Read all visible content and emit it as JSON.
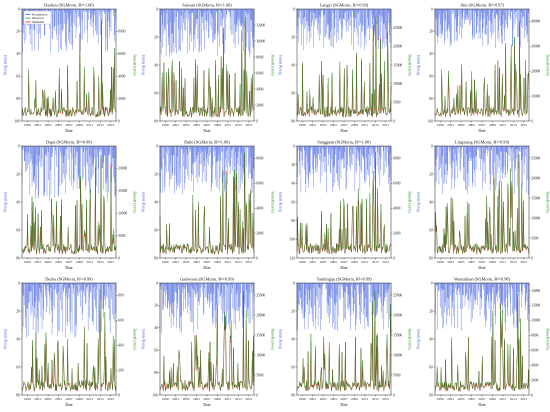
{
  "colors": {
    "precip": "#3355dd",
    "observed": "#2e7d1f",
    "simulated": "#e02020",
    "frame": "#222222",
    "precip_axis": "#3355dd",
    "runoff_axis": "#1a8a1a"
  },
  "legend": [
    "Precipitation",
    "Observed",
    "Simulated"
  ],
  "chart_data": [
    {
      "type": "line",
      "title": "Dazhou (SGMorm, R²=1.00)",
      "xlabel": "Date",
      "ylabel": "Precip (mm)",
      "y2label": "Runoff (m³/s)",
      "xticks": [
        "1999",
        "2001",
        "2003",
        "2005",
        "2007",
        "2009",
        "2011",
        "2013",
        "2015"
      ],
      "yticks": [
        0,
        20,
        40,
        60,
        80,
        100
      ],
      "y2ticks": [
        0,
        2000,
        4000,
        6000,
        8000
      ],
      "ylim": [
        0,
        100
      ],
      "y2lim": [
        0,
        10000
      ],
      "legend": "top-left",
      "series": [
        {
          "name": "Precipitation",
          "peak": 40
        },
        {
          "name": "Observed",
          "peak": 9000
        },
        {
          "name": "Simulated",
          "peak": 8800
        }
      ]
    },
    {
      "type": "line",
      "title": "Suiwan (SGMorm, R²=1.00)",
      "xlabel": "Date",
      "ylabel": "Precip (mm)",
      "y2label": "Runoff (m³/s)",
      "xticks": [
        "1999",
        "2001",
        "2003",
        "2005",
        "2007",
        "2009",
        "2011",
        "2013",
        "2015"
      ],
      "yticks": [
        0,
        20,
        40,
        60,
        80
      ],
      "y2ticks": [
        0,
        2000,
        4000,
        6000,
        8000,
        10000,
        12000
      ],
      "ylim": [
        0,
        80
      ],
      "y2lim": [
        0,
        14000
      ],
      "legend": "",
      "series": [
        {
          "name": "Precipitation",
          "peak": 35
        },
        {
          "name": "Observed",
          "peak": 13000
        },
        {
          "name": "Simulated",
          "peak": 12500
        }
      ]
    },
    {
      "type": "line",
      "title": "Langzi (SGMorm, R²=0.99)",
      "xlabel": "Date",
      "ylabel": "Precip (mm)",
      "y2label": "Runoff (m³/s)",
      "xticks": [
        "1999",
        "2001",
        "2003",
        "2005",
        "2007",
        "2009",
        "2011",
        "2013",
        "2015"
      ],
      "yticks": [
        0,
        20,
        40,
        60,
        80
      ],
      "y2ticks": [
        0,
        5000,
        10000,
        15000,
        20000,
        25000
      ],
      "ylim": [
        0,
        80
      ],
      "y2lim": [
        0,
        30000
      ],
      "legend": "",
      "series": [
        {
          "name": "Precipitation",
          "peak": 30
        },
        {
          "name": "Observed",
          "peak": 28000
        },
        {
          "name": "Simulated",
          "peak": 27000
        }
      ]
    },
    {
      "type": "line",
      "title": "Jifei (SGMorm, R²=0.97)",
      "xlabel": "Date",
      "ylabel": "Precip (mm)",
      "y2label": "Runoff (m³/s)",
      "xticks": [
        "1999",
        "2001",
        "2003",
        "2005",
        "2007",
        "2009",
        "2011",
        "2013",
        "2015"
      ],
      "yticks": [
        0,
        20,
        40,
        60,
        80,
        100
      ],
      "y2ticks": [
        0,
        10000,
        20000,
        30000,
        40000
      ],
      "ylim": [
        0,
        100
      ],
      "y2lim": [
        0,
        45000
      ],
      "legend": "",
      "series": [
        {
          "name": "Precipitation",
          "peak": 35
        },
        {
          "name": "Observed",
          "peak": 40000
        },
        {
          "name": "Simulated",
          "peak": 38000
        }
      ]
    },
    {
      "type": "line",
      "title": "Dapu (SGMorm, R²=0.99)",
      "xlabel": "Date",
      "ylabel": "Precip (mm)",
      "y2label": "Runoff (m³/s)",
      "xticks": [
        "1999",
        "2001",
        "2003",
        "2005",
        "2007",
        "2009",
        "2011",
        "2013",
        "2015"
      ],
      "yticks": [
        0,
        20,
        40,
        60,
        80
      ],
      "y2ticks": [
        0,
        5000,
        10000,
        15000,
        20000
      ],
      "ylim": [
        0,
        80
      ],
      "y2lim": [
        0,
        25000
      ],
      "legend": "",
      "series": [
        {
          "name": "Precipitation",
          "peak": 40
        },
        {
          "name": "Observed",
          "peak": 23000
        },
        {
          "name": "Simulated",
          "peak": 22000
        }
      ]
    },
    {
      "type": "line",
      "title": "Dahe (SGMorm, R²=1.00)",
      "xlabel": "Date",
      "ylabel": "Precip (mm)",
      "y2label": "Runoff (m³/s)",
      "xticks": [
        "1999",
        "2001",
        "2003",
        "2005",
        "2007",
        "2009",
        "2011",
        "2013",
        "2015"
      ],
      "yticks": [
        0,
        20,
        40,
        60,
        80
      ],
      "y2ticks": [
        0,
        2000,
        4000,
        6000,
        8000
      ],
      "ylim": [
        0,
        80
      ],
      "y2lim": [
        0,
        9000
      ],
      "legend": "",
      "series": [
        {
          "name": "Precipitation",
          "peak": 35
        },
        {
          "name": "Observed",
          "peak": 8500
        },
        {
          "name": "Simulated",
          "peak": 8300
        }
      ]
    },
    {
      "type": "line",
      "title": "Sangguan (SGMorm, R²=1.00)",
      "xlabel": "Date",
      "ylabel": "Precip (mm)",
      "y2label": "Runoff (m³/s)",
      "xticks": [
        "1999",
        "2001",
        "2003",
        "2005",
        "2007",
        "2009",
        "2011",
        "2013",
        "2015"
      ],
      "yticks": [
        0,
        20,
        40,
        60,
        80,
        100,
        120
      ],
      "y2ticks": [
        0,
        2000,
        4000,
        6000,
        8000
      ],
      "ylim": [
        0,
        120
      ],
      "y2lim": [
        0,
        9000
      ],
      "legend": "",
      "series": [
        {
          "name": "Precipitation",
          "peak": 50
        },
        {
          "name": "Observed",
          "peak": 8500
        },
        {
          "name": "Simulated",
          "peak": 8000
        }
      ]
    },
    {
      "type": "line",
      "title": "Lingxiang (SGMorm, R²=0.99)",
      "xlabel": "Date",
      "ylabel": "Precip (mm)",
      "y2label": "Runoff (m³/s)",
      "xticks": [
        "1999",
        "2001",
        "2003",
        "2005",
        "2007",
        "2009",
        "2011",
        "2013",
        "2015"
      ],
      "yticks": [
        0,
        20,
        40,
        60,
        80
      ],
      "y2ticks": [
        0,
        5000,
        10000,
        15000,
        20000,
        25000
      ],
      "ylim": [
        0,
        80
      ],
      "y2lim": [
        0,
        28000
      ],
      "legend": "",
      "series": [
        {
          "name": "Precipitation",
          "peak": 35
        },
        {
          "name": "Observed",
          "peak": 26000
        },
        {
          "name": "Simulated",
          "peak": 24000
        }
      ]
    },
    {
      "type": "line",
      "title": "Dezhe (SGMorm, R²=0.99)",
      "xlabel": "Date",
      "ylabel": "Precip (mm)",
      "y2label": "Runoff (m³/s)",
      "xticks": [
        "1999",
        "2001",
        "2003",
        "2005",
        "2007",
        "2009",
        "2011",
        "2013",
        "2015"
      ],
      "yticks": [
        0,
        20,
        40,
        60,
        80
      ],
      "y2ticks": [
        0,
        200,
        400,
        600,
        800
      ],
      "ylim": [
        0,
        80
      ],
      "y2lim": [
        0,
        900
      ],
      "legend": "",
      "series": [
        {
          "name": "Precipitation",
          "peak": 40
        },
        {
          "name": "Observed",
          "peak": 850
        },
        {
          "name": "Simulated",
          "peak": 800
        }
      ]
    },
    {
      "type": "line",
      "title": "Gaoheyan (SGMorm, R²=0.99)",
      "xlabel": "Date",
      "ylabel": "Precip (mm)",
      "y2label": "Runoff (m³/s)",
      "xticks": [
        "1999",
        "2001",
        "2003",
        "2005",
        "2007",
        "2009",
        "2011",
        "2013",
        "2015"
      ],
      "yticks": [
        0,
        20,
        40,
        60,
        80,
        100
      ],
      "y2ticks": [
        0,
        5000,
        10000,
        15000,
        20000,
        25000
      ],
      "ylim": [
        0,
        100
      ],
      "y2lim": [
        0,
        28000
      ],
      "legend": "",
      "series": [
        {
          "name": "Precipitation",
          "peak": 45
        },
        {
          "name": "Observed",
          "peak": 26000
        },
        {
          "name": "Simulated",
          "peak": 25000
        }
      ]
    },
    {
      "type": "line",
      "title": "Yandingqu (SGMorm, R²=0.99)",
      "xlabel": "Date",
      "ylabel": "Precip (mm)",
      "y2label": "Runoff (m³/s)",
      "xticks": [
        "1999",
        "2001",
        "2003",
        "2005",
        "2007",
        "2009",
        "2011",
        "2013",
        "2015"
      ],
      "yticks": [
        0,
        20,
        40,
        60,
        80
      ],
      "y2ticks": [
        0,
        5000,
        10000,
        15000,
        20000,
        25000
      ],
      "ylim": [
        0,
        80
      ],
      "y2lim": [
        0,
        28000
      ],
      "legend": "",
      "series": [
        {
          "name": "Precipitation",
          "peak": 35
        },
        {
          "name": "Observed",
          "peak": 26000
        },
        {
          "name": "Simulated",
          "peak": 24500
        }
      ]
    },
    {
      "type": "line",
      "title": "Wanxinhan (SGMorm, R²=0.98)",
      "xlabel": "Date",
      "ylabel": "Precip (mm)",
      "y2label": "Runoff (m³/s)",
      "xticks": [
        "1999",
        "2001",
        "2003",
        "2005",
        "2007",
        "2009",
        "2011",
        "2013",
        "2015"
      ],
      "yticks": [
        0,
        20,
        40,
        60,
        80
      ],
      "y2ticks": [
        0,
        2000,
        4000,
        6000,
        8000,
        10000,
        12000,
        14000
      ],
      "ylim": [
        0,
        80
      ],
      "y2lim": [
        0,
        15000
      ],
      "legend": "",
      "series": [
        {
          "name": "Precipitation",
          "peak": 35
        },
        {
          "name": "Observed",
          "peak": 13500
        },
        {
          "name": "Simulated",
          "peak": 12800
        }
      ]
    }
  ]
}
